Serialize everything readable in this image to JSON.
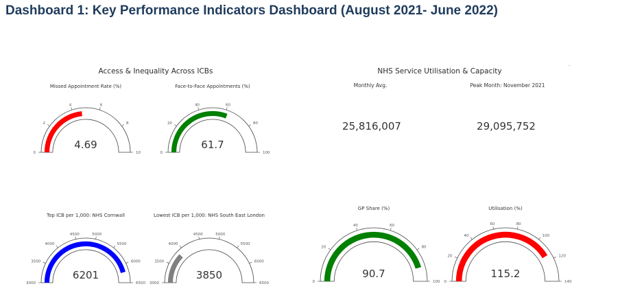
{
  "header": {
    "title": "Dashboard 1: Key Performance Indicators Dashboard (August 2021- June 2022)"
  },
  "sections": {
    "access": "Access & Inequality Across ICBs",
    "utilisation": "NHS Service Utilisation & Capacity"
  },
  "kpis": [
    {
      "label": "Monthly Avg.",
      "value": "25,816,007"
    },
    {
      "label": "Peak Month: November 2021",
      "value": "29,095,752"
    }
  ],
  "corner_mark": "™",
  "chart_data": [
    {
      "type": "gauge",
      "title": "Missed Appointment Rate (%)",
      "value": 4.69,
      "display_value": "4.69",
      "range": [
        0,
        10
      ],
      "ticks": [
        0,
        2,
        4,
        6,
        8,
        10
      ],
      "bar_color": "#ff0000"
    },
    {
      "type": "gauge",
      "title": "Face-to-Face Appointments (%)",
      "value": 61.7,
      "display_value": "61.7",
      "range": [
        0,
        100
      ],
      "ticks": [
        0,
        20,
        40,
        60,
        80,
        100
      ],
      "bar_color": "#008000"
    },
    {
      "type": "gauge",
      "title": "Top ICB per 1,000: NHS Cornwall",
      "value": 6201,
      "display_value": "6201",
      "range": [
        3000,
        6500
      ],
      "ticks": [
        3000,
        3500,
        4000,
        4500,
        5000,
        5500,
        6000,
        6500
      ],
      "bar_color": "#0000ff"
    },
    {
      "type": "gauge",
      "title": "Lowest ICB per 1,000: NHS South East London",
      "value": 3850,
      "display_value": "3850",
      "range": [
        3000,
        6500
      ],
      "ticks": [
        3000,
        3500,
        4000,
        4500,
        5000,
        5500,
        6000,
        6500
      ],
      "bar_color": "#808080"
    },
    {
      "type": "gauge",
      "title": "GP Share (%)",
      "value": 90.7,
      "display_value": "90.7",
      "range": [
        0,
        100
      ],
      "ticks": [
        0,
        20,
        40,
        60,
        80,
        100
      ],
      "bar_color": "#008000"
    },
    {
      "type": "gauge",
      "title": "Utilisation (%)",
      "value": 115.2,
      "display_value": "115.2",
      "range": [
        0,
        140
      ],
      "ticks": [
        0,
        20,
        40,
        60,
        80,
        100,
        120,
        140
      ],
      "bar_color": "#ff0000"
    }
  ]
}
